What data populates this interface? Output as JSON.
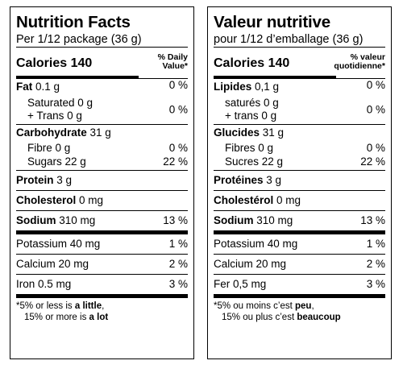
{
  "en": {
    "title": "Nutrition Facts",
    "serving": "Per 1/12 package (36 g)",
    "calories_label": "Calories 140",
    "dv_line1": "% Daily",
    "dv_line2": "Value*",
    "fat": {
      "name": "Fat",
      "amount": " 0.1 g",
      "pct": "0 %"
    },
    "saturated": "Saturated 0 g",
    "trans": "+ Trans 0 g",
    "sat_trans_pct": "0 %",
    "carb": {
      "name": "Carbohydrate",
      "amount": " 31 g"
    },
    "fibre": {
      "label": "Fibre 0 g",
      "pct": "0 %"
    },
    "sugars": {
      "label": "Sugars 22 g",
      "pct": "22 %"
    },
    "protein": {
      "name": "Protein",
      "amount": " 3 g"
    },
    "cholesterol": {
      "name": "Cholesterol",
      "amount": " 0 mg"
    },
    "sodium": {
      "name": "Sodium",
      "amount": " 310 mg",
      "pct": "13 %"
    },
    "potassium": {
      "label": "Potassium 40 mg",
      "pct": "1 %"
    },
    "calcium": {
      "label": "Calcium 20 mg",
      "pct": "2 %"
    },
    "iron": {
      "label": "Iron 0.5 mg",
      "pct": "3 %"
    },
    "foot1_pre": "*5% or less is ",
    "foot1_bold": "a little",
    "foot1_post": ",",
    "foot2_pre": "15% or more is ",
    "foot2_bold": "a lot"
  },
  "fr": {
    "title": "Valeur nutritive",
    "serving": "pour 1/12 d’emballage (36 g)",
    "calories_label": "Calories 140",
    "dv_line1": "% valeur",
    "dv_line2": "quotidienne*",
    "fat": {
      "name": "Lipides",
      "amount": " 0,1 g",
      "pct": "0 %"
    },
    "saturated": "saturés 0 g",
    "trans": "+ trans 0 g",
    "sat_trans_pct": "0 %",
    "carb": {
      "name": "Glucides",
      "amount": " 31 g"
    },
    "fibre": {
      "label": "Fibres 0 g",
      "pct": "0 %"
    },
    "sugars": {
      "label": "Sucres 22 g",
      "pct": "22 %"
    },
    "protein": {
      "name": "Protéines",
      "amount": " 3 g"
    },
    "cholesterol": {
      "name": "Cholestérol",
      "amount": " 0 mg"
    },
    "sodium": {
      "name": "Sodium",
      "amount": " 310 mg",
      "pct": "13 %"
    },
    "potassium": {
      "label": "Potassium 40 mg",
      "pct": "1 %"
    },
    "calcium": {
      "label": "Calcium 20 mg",
      "pct": "2 %"
    },
    "iron": {
      "label": "Fer 0,5 mg",
      "pct": "3 %"
    },
    "foot1_pre": "*5% ou moins c’est ",
    "foot1_bold": "peu",
    "foot1_post": ",",
    "foot2_pre": "15% ou plus c’est ",
    "foot2_bold": "beaucoup"
  }
}
